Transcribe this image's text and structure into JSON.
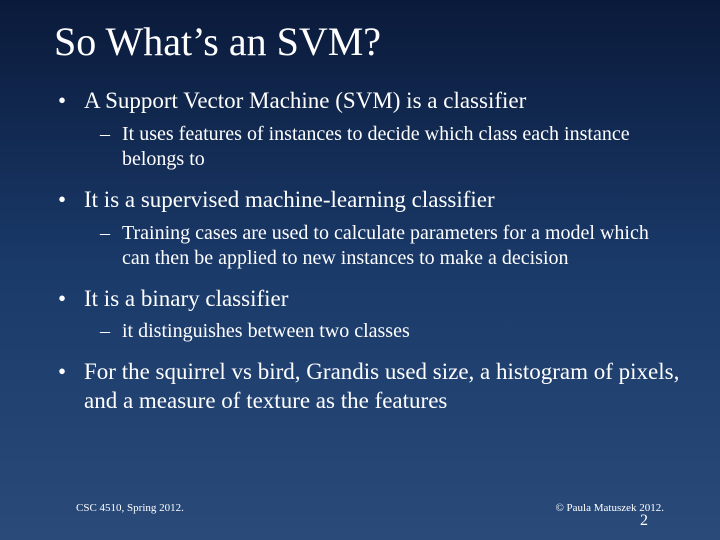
{
  "background": {
    "gradient_top": "#0a1a3a",
    "gradient_mid": "#1a3a6a",
    "gradient_bottom": "#2a4a7a"
  },
  "text_color": "#ffffff",
  "font_family": "Times New Roman",
  "title": {
    "text": "So What’s an SVM?",
    "fontsize": 40
  },
  "bullets": [
    {
      "level": 1,
      "text": "A Support Vector Machine (SVM) is a classifier"
    },
    {
      "level": 2,
      "text": "It uses features of instances to decide which class each instance belongs to"
    },
    {
      "level": 1,
      "text": "It is a supervised machine-learning classifier"
    },
    {
      "level": 2,
      "text": "Training cases are used to calculate parameters for a model which can then be applied to new instances to make a decision"
    },
    {
      "level": 1,
      "text": "It is a binary classifier"
    },
    {
      "level": 2,
      "text": "it distinguishes between two classes"
    },
    {
      "level": 1,
      "text": "For the squirrel vs bird, Grandis used size, a histogram of pixels, and a measure of texture as the features"
    }
  ],
  "bullet_l1_fontsize": 23,
  "bullet_l2_fontsize": 20,
  "bullet_l1_marker": "•",
  "bullet_l2_marker": "–",
  "footer": {
    "left": "CSC 4510, Spring 2012.",
    "right": "© Paula Matuszek 2012.",
    "page": "2",
    "fontsize": 11
  }
}
